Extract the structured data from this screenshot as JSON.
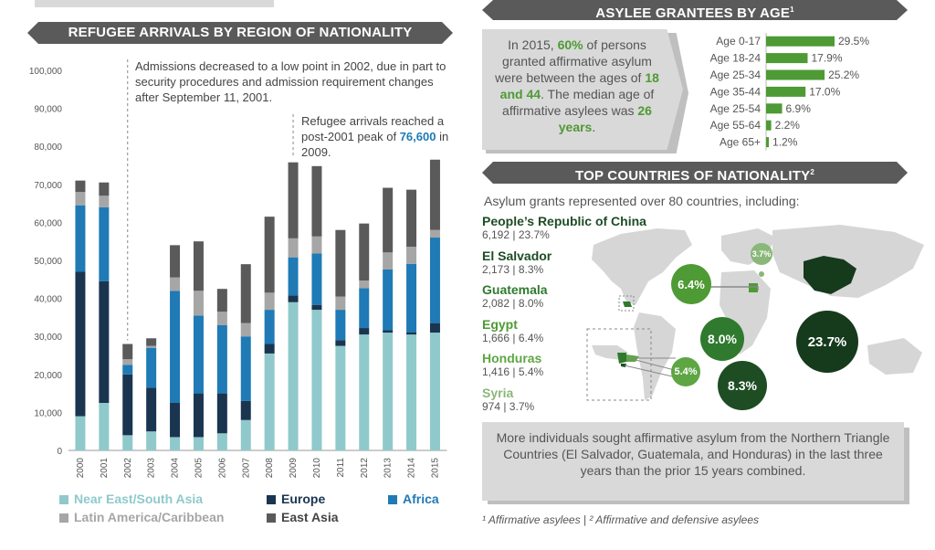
{
  "left": {
    "banner_title": "REFUGEE ARRIVALS BY REGION OF NATIONALITY",
    "annotation1": "Admissions decreased to a low point in 2002, due in part to security procedures and admission requirement changes after September 11, 2001.",
    "annotation2_pre": "Refugee arrivals reached a post-2001 peak of",
    "annotation2_value": "76,600",
    "annotation2_post": "in 2009."
  },
  "chart_data": {
    "type": "bar",
    "stacked": true,
    "categories": [
      "2000",
      "2001",
      "2002",
      "2003",
      "2004",
      "2005",
      "2006",
      "2007",
      "2008",
      "2009",
      "2010",
      "2011",
      "2012",
      "2013",
      "2014",
      "2015"
    ],
    "ylim": [
      0,
      100000
    ],
    "yticks": [
      "0",
      "10,000",
      "20,000",
      "30,000",
      "40,000",
      "50,000",
      "60,000",
      "70,000",
      "80,000",
      "90,000",
      "100,000"
    ],
    "grid": false,
    "legend_position": "bottom",
    "series": [
      {
        "name": "Near East/South Asia",
        "color": "#8fc9cb",
        "values": [
          9000,
          12500,
          4000,
          5000,
          3500,
          3500,
          4500,
          8000,
          25500,
          39000,
          37000,
          27500,
          30500,
          31000,
          30500,
          31000
        ]
      },
      {
        "name": "Europe",
        "color": "#1a3550",
        "values": [
          38000,
          32000,
          16000,
          11500,
          9000,
          11500,
          10500,
          5000,
          2500,
          1800,
          1300,
          1500,
          1700,
          600,
          600,
          2500
        ]
      },
      {
        "name": "Africa",
        "color": "#1f7ab5",
        "values": [
          17500,
          19500,
          2500,
          10500,
          29500,
          20500,
          18000,
          17000,
          9000,
          10000,
          13500,
          8000,
          10500,
          16000,
          18000,
          22500
        ]
      },
      {
        "name": "Latin America/Caribbean",
        "color": "#a6a6a6",
        "values": [
          3500,
          3000,
          1500,
          500,
          3500,
          6500,
          3500,
          3500,
          4500,
          5000,
          4500,
          3500,
          2000,
          4500,
          4500,
          2000
        ]
      },
      {
        "name": "East Asia",
        "color": "#5a5a5a",
        "values": [
          3000,
          3500,
          4000,
          2000,
          8500,
          13000,
          6000,
          15500,
          20000,
          20000,
          18500,
          17500,
          15000,
          17000,
          15000,
          18500
        ]
      }
    ]
  },
  "age": {
    "banner_title": "ASYLEE GRANTEES BY AGE",
    "banner_sup": "1",
    "callout": {
      "line1_pre": "In 2015,",
      "pct": "60%",
      "line1_post": "of persons granted affirmative asylum were between the ages of",
      "age_a": "18 and 44",
      "mid": ". The median age of affirmative asylees was",
      "median": "26 years",
      "end": "."
    },
    "bars": [
      {
        "label": "Age 0-17",
        "value": 29.5,
        "text": "29.5%"
      },
      {
        "label": "Age 18-24",
        "value": 17.9,
        "text": "17.9%"
      },
      {
        "label": "Age 25-34",
        "value": 25.2,
        "text": "25.2%"
      },
      {
        "label": "Age 35-44",
        "value": 17.0,
        "text": "17.0%"
      },
      {
        "label": "Age 25-54",
        "value": 6.9,
        "text": "6.9%"
      },
      {
        "label": "Age 55-64",
        "value": 2.2,
        "text": "2.2%"
      },
      {
        "label": "Age 65+",
        "value": 1.2,
        "text": "1.2%"
      }
    ],
    "bar_color": "#4e9a34"
  },
  "countries": {
    "banner_title": "TOP COUNTRIES OF NATIONALITY",
    "banner_sup": "2",
    "intro": "Asylum grants represented over 80 countries, including:",
    "list": [
      {
        "name": "People’s Republic of China",
        "stats": "6,192 | 23.7%",
        "color": "#1e4d24"
      },
      {
        "name": "El Salvador",
        "stats": "2,173 | 8.3%",
        "color": "#1e4d24"
      },
      {
        "name": "Guatemala",
        "stats": "2,082 | 8.0%",
        "color": "#2f7a2e"
      },
      {
        "name": "Egypt",
        "stats": "1,666 | 6.4%",
        "color": "#4e9a34"
      },
      {
        "name": "Honduras",
        "stats": "1,416 | 5.4%",
        "color": "#5ea644"
      },
      {
        "name": "Syria",
        "stats": "974 | 3.7%",
        "color": "#8ab77a"
      }
    ],
    "bubbles": [
      {
        "label": "23.7%",
        "color": "#163a1c"
      },
      {
        "label": "8.3%",
        "color": "#1e4d24"
      },
      {
        "label": "8.0%",
        "color": "#2f7a2e"
      },
      {
        "label": "6.4%",
        "color": "#4e9a34"
      },
      {
        "label": "5.4%",
        "color": "#5ea644"
      },
      {
        "label": "3.7%",
        "color": "#8ab77a"
      }
    ],
    "callout": "More individuals sought affirmative asylum from the Northern Triangle Countries (El Salvador, Guatemala, and Honduras) in the last three years than the prior 15 years combined."
  },
  "footnote": "¹ Affirmative asylees | ² Affirmative and defensive asylees"
}
